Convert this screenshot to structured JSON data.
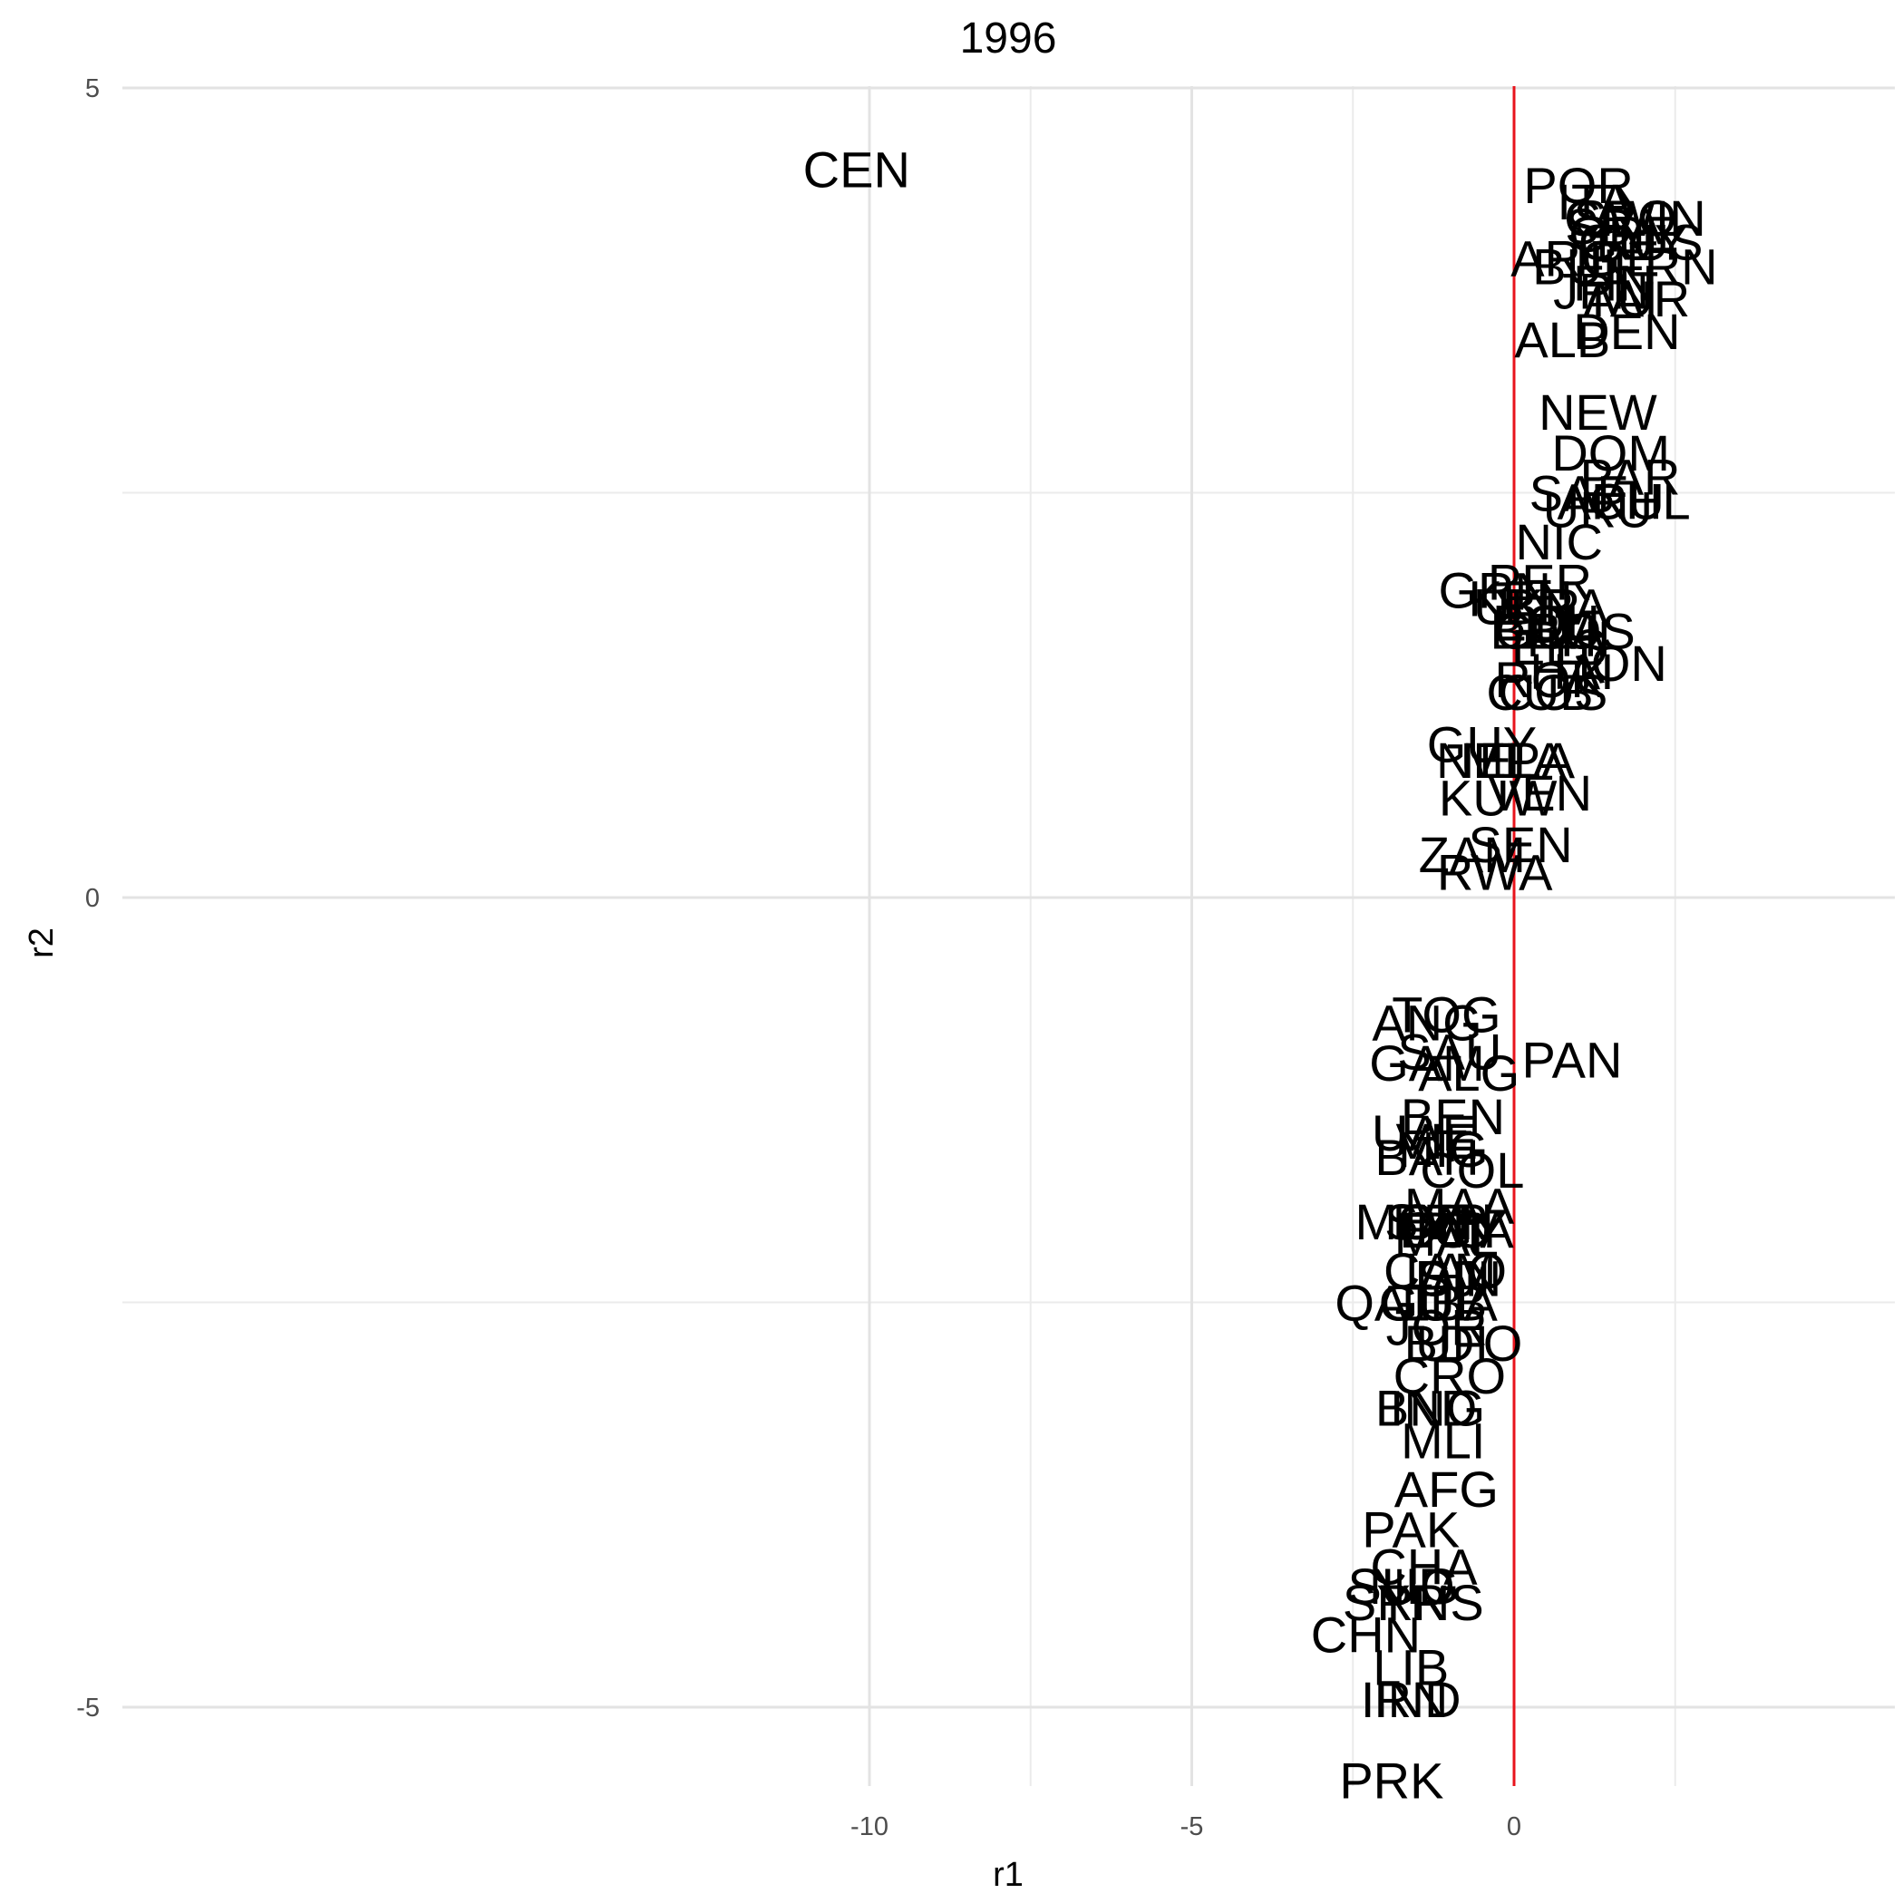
{
  "chart_data": {
    "type": "scatter",
    "title": "1996",
    "xlabel": "r1",
    "ylabel": "r2",
    "xlim": [
      -11.6,
      2.9
    ],
    "ylim": [
      -5.5,
      5.0
    ],
    "x_ticks": [
      -10,
      -5,
      0
    ],
    "y_ticks": [
      -5,
      0,
      5
    ],
    "x_tick_labels": [
      "-10",
      "-5",
      "0"
    ],
    "y_tick_labels": [
      "-5",
      "0",
      "5"
    ],
    "grid": true,
    "reference_line": {
      "axis": "x",
      "value": 0,
      "color": "#e8141c"
    },
    "points": [
      {
        "label": "CEN",
        "x": -10.2,
        "y": 4.5
      },
      {
        "label": "POR",
        "x": 1.0,
        "y": 4.4
      },
      {
        "label": "ITA",
        "x": 1.25,
        "y": 4.3
      },
      {
        "label": "CRO",
        "x": 1.65,
        "y": 4.2
      },
      {
        "label": "SWIN",
        "x": 1.95,
        "y": 4.2
      },
      {
        "label": "SPA",
        "x": 1.55,
        "y": 4.15
      },
      {
        "label": "GRE",
        "x": 1.7,
        "y": 4.1
      },
      {
        "label": "GUY",
        "x": 1.85,
        "y": 4.05
      },
      {
        "label": "RUS",
        "x": 2.1,
        "y": 4.05
      },
      {
        "label": "ARG",
        "x": 0.8,
        "y": 3.95
      },
      {
        "label": "BUL",
        "x": 1.05,
        "y": 3.9
      },
      {
        "label": "IRE",
        "x": 1.6,
        "y": 3.95
      },
      {
        "label": "FRN",
        "x": 2.35,
        "y": 3.9
      },
      {
        "label": "JPN",
        "x": 1.35,
        "y": 3.75
      },
      {
        "label": "FIN",
        "x": 1.55,
        "y": 3.8
      },
      {
        "label": "TAI",
        "x": 1.65,
        "y": 3.7
      },
      {
        "label": "AUR",
        "x": 1.9,
        "y": 3.7
      },
      {
        "label": "ALB",
        "x": 0.75,
        "y": 3.45
      },
      {
        "label": "DEN",
        "x": 1.75,
        "y": 3.5
      },
      {
        "label": "NEW",
        "x": 1.3,
        "y": 3.0
      },
      {
        "label": "DOM",
        "x": 1.5,
        "y": 2.75
      },
      {
        "label": "PAR",
        "x": 1.8,
        "y": 2.6
      },
      {
        "label": "SAF",
        "x": 1.0,
        "y": 2.5
      },
      {
        "label": "ARU",
        "x": 1.5,
        "y": 2.45
      },
      {
        "label": "CHL",
        "x": 1.95,
        "y": 2.45
      },
      {
        "label": "URU",
        "x": 1.3,
        "y": 2.4
      },
      {
        "label": "NIC",
        "x": 0.7,
        "y": 2.2
      },
      {
        "label": "GRN",
        "x": -0.3,
        "y": 1.9
      },
      {
        "label": "PER",
        "x": 0.4,
        "y": 1.95
      },
      {
        "label": "KEN",
        "x": 0.1,
        "y": 1.85
      },
      {
        "label": "BRA",
        "x": 0.65,
        "y": 1.8
      },
      {
        "label": "UKR",
        "x": 0.2,
        "y": 1.8
      },
      {
        "label": "BOL",
        "x": 0.45,
        "y": 1.7
      },
      {
        "label": "ECU",
        "x": 0.5,
        "y": 1.7
      },
      {
        "label": "BLZ",
        "x": 0.35,
        "y": 1.65
      },
      {
        "label": "GUA",
        "x": 0.55,
        "y": 1.65
      },
      {
        "label": "BOS",
        "x": 1.05,
        "y": 1.65
      },
      {
        "label": "PHI",
        "x": 0.85,
        "y": 1.6
      },
      {
        "label": "ELS",
        "x": 0.7,
        "y": 1.55
      },
      {
        "label": "HON",
        "x": 1.5,
        "y": 1.45
      },
      {
        "label": "HAI",
        "x": 0.9,
        "y": 1.4
      },
      {
        "label": "ROK",
        "x": 0.55,
        "y": 1.35
      },
      {
        "label": "CUB",
        "x": 0.4,
        "y": 1.27
      },
      {
        "label": "COS",
        "x": 0.6,
        "y": 1.27
      },
      {
        "label": "GUY",
        "x": -0.5,
        "y": 0.95
      },
      {
        "label": "MLA",
        "x": 0.0,
        "y": 0.85
      },
      {
        "label": "NEP",
        "x": -0.4,
        "y": 0.85
      },
      {
        "label": "ELA",
        "x": 0.2,
        "y": 0.85
      },
      {
        "label": "VEN",
        "x": 0.4,
        "y": 0.65
      },
      {
        "label": "KUW",
        "x": -0.25,
        "y": 0.62
      },
      {
        "label": "SEN",
        "x": 0.1,
        "y": 0.33
      },
      {
        "label": "ZAM",
        "x": -0.65,
        "y": 0.27
      },
      {
        "label": "RWA",
        "x": -0.3,
        "y": 0.16
      },
      {
        "label": "TOG",
        "x": -1.05,
        "y": -0.72
      },
      {
        "label": "ANG",
        "x": -1.35,
        "y": -0.77
      },
      {
        "label": "SAU",
        "x": -1.0,
        "y": -0.95
      },
      {
        "label": "PAN",
        "x": 0.9,
        "y": -1.0
      },
      {
        "label": "GAM",
        "x": -1.35,
        "y": -1.02
      },
      {
        "label": "ALG",
        "x": -0.7,
        "y": -1.08
      },
      {
        "label": "BEN",
        "x": -0.95,
        "y": -1.35
      },
      {
        "label": "UAE",
        "x": -1.4,
        "y": -1.45
      },
      {
        "label": "VIE",
        "x": -1.2,
        "y": -1.5
      },
      {
        "label": "BAH",
        "x": -1.35,
        "y": -1.6
      },
      {
        "label": "NIG",
        "x": -1.1,
        "y": -1.55
      },
      {
        "label": "COL",
        "x": -0.65,
        "y": -1.68
      },
      {
        "label": "MAA",
        "x": -0.85,
        "y": -1.9
      },
      {
        "label": "MON",
        "x": -1.55,
        "y": -2.0
      },
      {
        "label": "SYR",
        "x": -1.2,
        "y": -2.0
      },
      {
        "label": "ETH",
        "x": -1.1,
        "y": -2.0
      },
      {
        "label": "EGY",
        "x": -0.95,
        "y": -2.05
      },
      {
        "label": "IRQ",
        "x": -1.05,
        "y": -2.05
      },
      {
        "label": "OMA",
        "x": -0.9,
        "y": -2.05
      },
      {
        "label": "MAL",
        "x": -1.05,
        "y": -2.1
      },
      {
        "label": "CAM",
        "x": -1.15,
        "y": -2.3
      },
      {
        "label": "LAO",
        "x": -0.9,
        "y": -2.3
      },
      {
        "label": "DJI",
        "x": -0.95,
        "y": -2.35
      },
      {
        "label": "SIN",
        "x": -0.85,
        "y": -2.35
      },
      {
        "label": "QAT",
        "x": -2.0,
        "y": -2.5
      },
      {
        "label": "GUI",
        "x": -1.4,
        "y": -2.5
      },
      {
        "label": "CUB",
        "x": -1.25,
        "y": -2.5
      },
      {
        "label": "LBA",
        "x": -1.0,
        "y": -2.5
      },
      {
        "label": "JOR",
        "x": -1.2,
        "y": -2.65
      },
      {
        "label": "BDI",
        "x": -1.05,
        "y": -2.75
      },
      {
        "label": "UFO",
        "x": -0.7,
        "y": -2.75
      },
      {
        "label": "CRO",
        "x": -1.0,
        "y": -2.95
      },
      {
        "label": "BNG",
        "x": -1.3,
        "y": -3.15
      },
      {
        "label": "IND",
        "x": -1.25,
        "y": -3.15
      },
      {
        "label": "MLI",
        "x": -1.1,
        "y": -3.35
      },
      {
        "label": "AFG",
        "x": -1.05,
        "y": -3.65
      },
      {
        "label": "PAK",
        "x": -1.6,
        "y": -3.9
      },
      {
        "label": "CHA",
        "x": -1.4,
        "y": -4.13
      },
      {
        "label": "SUD",
        "x": -1.75,
        "y": -4.25
      },
      {
        "label": "NIG",
        "x": -1.55,
        "y": -4.25
      },
      {
        "label": "SYR",
        "x": -1.85,
        "y": -4.35
      },
      {
        "label": "RNS",
        "x": -1.3,
        "y": -4.35
      },
      {
        "label": "CHN",
        "x": -2.3,
        "y": -4.55
      },
      {
        "label": "LIB",
        "x": -1.6,
        "y": -4.75
      },
      {
        "label": "IRN",
        "x": -1.7,
        "y": -4.95
      },
      {
        "label": "IND",
        "x": -1.5,
        "y": -4.95
      },
      {
        "label": "PRK",
        "x": -1.9,
        "y": -5.45
      }
    ]
  }
}
